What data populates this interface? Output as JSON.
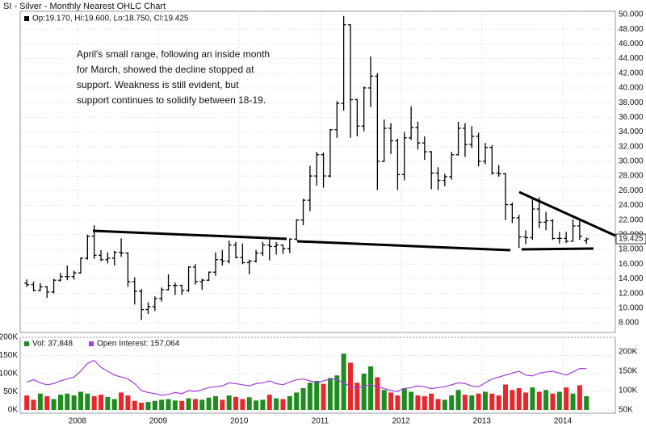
{
  "chart_data": [
    {
      "type": "ohlc",
      "title": "SI - Silver - Monthly Nearest OHLC Chart",
      "header": "Op:19.170, Hi:19.600, Lo:18.750, Cl:19.425",
      "annotation": [
        "April's small range, following an inside month",
        "for March, showed the decline stopped at",
        "support.  Weakness is still evident, but",
        "support continues to solidify between 18-19."
      ],
      "price_tag": "19.425",
      "color": "#000000",
      "grid": true,
      "categories": [
        null,
        null,
        null,
        null,
        null,
        null,
        null,
        null,
        "2008",
        null,
        null,
        null,
        null,
        null,
        null,
        null,
        null,
        null,
        null,
        null,
        "2009",
        null,
        null,
        null,
        null,
        null,
        null,
        null,
        null,
        null,
        null,
        null,
        "2010",
        null,
        null,
        null,
        null,
        null,
        null,
        null,
        null,
        null,
        null,
        null,
        "2011",
        null,
        null,
        null,
        null,
        null,
        null,
        null,
        null,
        null,
        null,
        null,
        "2012",
        null,
        null,
        null,
        null,
        null,
        null,
        null,
        null,
        null,
        null,
        null,
        "2013",
        null,
        null,
        null,
        null,
        null,
        null,
        null,
        null,
        null,
        null,
        null,
        "2014",
        null,
        null,
        null
      ],
      "open": [
        13.4,
        13.2,
        12.4,
        12.9,
        12.2,
        13.8,
        14.3,
        14.3,
        14.8,
        16.8,
        19.8,
        17.2,
        16.6,
        16.8,
        17.6,
        17.5,
        13.6,
        12.3,
        9.8,
        10.2,
        11.3,
        12.5,
        13.1,
        13.1,
        12.4,
        15.6,
        13.6,
        13.8,
        14.9,
        16.6,
        16.4,
        18.6,
        16.9,
        16.2,
        16.4,
        17.5,
        18.6,
        18.4,
        18.6,
        18.1,
        19.4,
        22.0,
        24.7,
        28.0,
        30.9,
        28.0,
        34.3,
        37.9,
        48.6,
        38.4,
        34.8,
        40.0,
        41.6,
        30.0,
        34.5,
        32.8,
        28.2,
        33.2,
        34.6,
        32.5,
        31.3,
        28.4,
        27.4,
        27.9,
        30.9,
        34.5,
        32.3,
        33.4,
        30.0,
        31.9,
        28.4,
        28.3,
        24.1,
        22.3,
        19.7,
        19.6,
        23.5,
        21.7,
        21.9,
        19.5,
        19.5,
        19.1,
        21.2,
        19.17
      ],
      "high": [
        13.9,
        13.6,
        13.4,
        13.0,
        14.0,
        14.8,
        15.8,
        15.1,
        16.9,
        20.0,
        21.3,
        17.9,
        17.6,
        17.8,
        19.5,
        17.6,
        14.2,
        12.6,
        10.8,
        11.6,
        12.8,
        14.6,
        13.5,
        13.2,
        15.7,
        16.0,
        14.0,
        15.0,
        17.6,
        17.9,
        19.2,
        19.0,
        18.8,
        16.6,
        17.9,
        19.0,
        19.6,
        19.0,
        18.6,
        19.5,
        22.1,
        24.9,
        29.4,
        31.3,
        31.2,
        34.4,
        38.2,
        49.8,
        48.7,
        38.5,
        40.2,
        44.3,
        42.0,
        35.7,
        35.2,
        33.1,
        34.0,
        37.5,
        35.4,
        33.4,
        31.4,
        29.2,
        28.3,
        31.3,
        35.4,
        35.2,
        34.8,
        33.9,
        32.5,
        32.2,
        29.5,
        28.4,
        24.4,
        22.7,
        20.6,
        25.1,
        25.1,
        23.1,
        22.1,
        20.4,
        20.4,
        22.1,
        21.9,
        19.6
      ],
      "low": [
        12.9,
        12.3,
        12.3,
        11.4,
        12.0,
        13.6,
        13.8,
        13.9,
        14.7,
        16.6,
        16.7,
        16.4,
        16.1,
        15.8,
        17.0,
        12.9,
        10.5,
        8.4,
        9.2,
        9.6,
        10.9,
        12.4,
        11.8,
        11.8,
        12.2,
        13.2,
        12.5,
        13.7,
        14.4,
        15.8,
        16.1,
        16.8,
        16.0,
        14.6,
        16.2,
        17.1,
        16.5,
        17.3,
        17.4,
        17.5,
        19.2,
        21.3,
        23.2,
        26.7,
        26.4,
        27.8,
        33.2,
        36.9,
        33.2,
        33.4,
        34.1,
        37.4,
        26.1,
        29.9,
        31.0,
        26.1,
        27.4,
        32.9,
        31.6,
        30.2,
        26.2,
        26.1,
        26.6,
        27.5,
        30.8,
        30.6,
        31.8,
        29.3,
        29.6,
        28.2,
        27.9,
        22.0,
        21.6,
        18.2,
        18.7,
        19.3,
        20.9,
        20.6,
        19.3,
        18.8,
        18.9,
        19.1,
        19.3,
        18.75
      ],
      "close": [
        13.2,
        12.4,
        12.9,
        12.2,
        13.8,
        14.3,
        14.3,
        14.8,
        16.8,
        19.8,
        17.2,
        16.6,
        16.8,
        17.6,
        17.5,
        13.6,
        12.3,
        9.8,
        10.2,
        11.3,
        12.5,
        13.1,
        13.1,
        12.4,
        15.6,
        13.6,
        13.8,
        14.9,
        16.6,
        16.4,
        18.6,
        16.9,
        16.2,
        16.4,
        17.5,
        18.6,
        18.4,
        18.6,
        18.1,
        19.4,
        22.0,
        24.7,
        28.0,
        30.9,
        28.0,
        34.3,
        37.9,
        48.6,
        38.4,
        34.8,
        40.0,
        41.6,
        30.0,
        34.5,
        32.8,
        28.2,
        33.2,
        34.6,
        32.5,
        31.3,
        28.4,
        27.4,
        27.9,
        30.9,
        34.5,
        32.3,
        33.4,
        30.0,
        31.9,
        28.4,
        28.3,
        24.1,
        22.3,
        19.7,
        19.6,
        23.5,
        21.7,
        21.9,
        19.5,
        19.5,
        19.1,
        21.2,
        19.8,
        19.425
      ],
      "ylim": [
        8,
        50
      ],
      "yticks": [
        {
          "value": 8,
          "label": "8.000"
        },
        {
          "value": 10,
          "label": "10.000"
        },
        {
          "value": 12,
          "label": "12.000"
        },
        {
          "value": 14,
          "label": "14.000"
        },
        {
          "value": 16,
          "label": "16.000"
        },
        {
          "value": 18,
          "label": "18.000"
        },
        {
          "value": 20,
          "label": "20.000"
        },
        {
          "value": 22,
          "label": "22.000"
        },
        {
          "value": 24,
          "label": "24.000"
        },
        {
          "value": 26,
          "label": "26.000"
        },
        {
          "value": 28,
          "label": "28.000"
        },
        {
          "value": 30,
          "label": "30.000"
        },
        {
          "value": 32,
          "label": "32.000"
        },
        {
          "value": 34,
          "label": "34.000"
        },
        {
          "value": 36,
          "label": "36.000"
        },
        {
          "value": 38,
          "label": "38.000"
        },
        {
          "value": 40,
          "label": "40.000"
        },
        {
          "value": 42,
          "label": "42.000"
        },
        {
          "value": 44,
          "label": "44.000"
        },
        {
          "value": 46,
          "label": "46.000"
        },
        {
          "value": 48,
          "label": "48.000"
        },
        {
          "value": 50,
          "label": "50.000"
        }
      ]
    },
    {
      "type": "volume",
      "grid": true,
      "series": [
        {
          "name": "Vol: 37,848",
          "up_color": "#1e8c1e",
          "down_color": "#e8262b",
          "values": [
            40000,
            28000,
            45000,
            38000,
            30000,
            42000,
            45000,
            40000,
            50000,
            45000,
            38000,
            42000,
            36000,
            30000,
            48000,
            40000,
            25000,
            20000,
            22000,
            25000,
            28000,
            30000,
            26000,
            25000,
            32000,
            30000,
            28000,
            34000,
            38000,
            28000,
            40000,
            36000,
            30000,
            35000,
            26000,
            28000,
            42000,
            32000,
            30000,
            38000,
            48000,
            60000,
            75000,
            80000,
            72000,
            88000,
            95000,
            155000,
            130000,
            75000,
            100000,
            120000,
            90000,
            55000,
            48000,
            40000,
            60000,
            50000,
            40000,
            38000,
            45000,
            30000,
            28000,
            40000,
            55000,
            42000,
            40000,
            45000,
            50000,
            45000,
            40000,
            70000,
            55000,
            60000,
            48000,
            62000,
            50000,
            55000,
            45000,
            50000,
            62000,
            45000,
            68000,
            37848
          ]
        },
        {
          "name": "Open Interest: 157,064",
          "color": "#a23ee0",
          "axis": "y2",
          "values": [
            122000,
            128000,
            120000,
            115000,
            118000,
            125000,
            130000,
            135000,
            150000,
            170000,
            178000,
            160000,
            150000,
            140000,
            135000,
            130000,
            118000,
            100000,
            95000,
            92000,
            88000,
            90000,
            95000,
            92000,
            100000,
            98000,
            102000,
            108000,
            110000,
            112000,
            120000,
            118000,
            115000,
            112000,
            118000,
            120000,
            125000,
            118000,
            115000,
            122000,
            128000,
            130000,
            125000,
            120000,
            125000,
            130000,
            128000,
            120000,
            110000,
            105000,
            112000,
            115000,
            110000,
            105000,
            100000,
            98000,
            105000,
            108000,
            112000,
            110000,
            105000,
            108000,
            110000,
            115000,
            120000,
            118000,
            112000,
            110000,
            120000,
            130000,
            135000,
            140000,
            145000,
            150000,
            140000,
            138000,
            145000,
            148000,
            150000,
            145000,
            140000,
            148000,
            157000,
            157064
          ]
        }
      ],
      "ylim": [
        0,
        200000
      ],
      "yticks": [
        {
          "value": 0,
          "label": "0K"
        },
        {
          "value": 50000,
          "label": "50K"
        },
        {
          "value": 100000,
          "label": "100K"
        },
        {
          "value": 150000,
          "label": "150K"
        },
        {
          "value": 200000,
          "label": "200K"
        }
      ],
      "y2lim": [
        50000,
        237500
      ],
      "y2ticks": [
        {
          "value": 50000,
          "label": "50K"
        },
        {
          "value": 100000,
          "label": "100K"
        },
        {
          "value": 150000,
          "label": "150K"
        },
        {
          "value": 200000,
          "label": "200K"
        }
      ]
    }
  ]
}
